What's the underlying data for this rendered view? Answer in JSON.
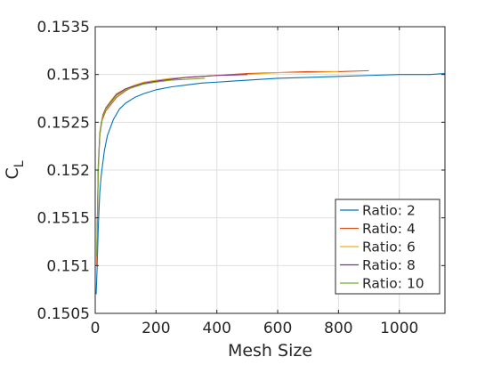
{
  "chart_data": {
    "type": "line",
    "xlabel": "Mesh Size",
    "ylabel_main": "C",
    "ylabel_sub": "L",
    "xlim": [
      0,
      1150
    ],
    "ylim": [
      0.1505,
      0.1535
    ],
    "xticks": [
      0,
      200,
      400,
      600,
      800,
      1000
    ],
    "yticks": [
      0.1505,
      0.151,
      0.1515,
      0.152,
      0.1525,
      0.153,
      0.1535
    ],
    "xtick_labels": [
      "0",
      "200",
      "400",
      "600",
      "800",
      "1000"
    ],
    "ytick_labels": [
      "0.1505",
      "0.151",
      "0.1515",
      "0.152",
      "0.1525",
      "0.153",
      "0.1535"
    ],
    "grid": true,
    "legend_position": "bottom-right",
    "series": [
      {
        "name": "Ratio: 2",
        "color": "#0072BD",
        "x": [
          3,
          6,
          10,
          15,
          20,
          30,
          40,
          60,
          80,
          100,
          130,
          160,
          200,
          250,
          300,
          350,
          400,
          500,
          600,
          700,
          800,
          900,
          1000,
          1100,
          1150
        ],
        "y": [
          0.1507,
          0.15095,
          0.1514,
          0.15177,
          0.15195,
          0.1522,
          0.15236,
          0.15253,
          0.15264,
          0.1527,
          0.15276,
          0.1528,
          0.15284,
          0.15287,
          0.15289,
          0.15291,
          0.15292,
          0.15294,
          0.15296,
          0.15297,
          0.15298,
          0.15299,
          0.153,
          0.153,
          0.15301
        ]
      },
      {
        "name": "Ratio: 4",
        "color": "#D95319",
        "x": [
          5,
          10,
          15,
          20,
          35,
          50,
          70,
          100,
          130,
          160,
          200,
          250,
          300,
          400,
          500,
          600,
          700,
          800,
          900
        ],
        "y": [
          0.151,
          0.152,
          0.15235,
          0.1525,
          0.15262,
          0.15268,
          0.15276,
          0.15283,
          0.15288,
          0.15291,
          0.15293,
          0.15295,
          0.15297,
          0.15299,
          0.15301,
          0.15302,
          0.15303,
          0.15303,
          0.15304
        ]
      },
      {
        "name": "Ratio: 6",
        "color": "#EDB120",
        "x": [
          5,
          10,
          15,
          25,
          35,
          50,
          70,
          100,
          130,
          160,
          200,
          250,
          300,
          400,
          500,
          600,
          700,
          800
        ],
        "y": [
          0.1512,
          0.152,
          0.1524,
          0.15258,
          0.15265,
          0.15272,
          0.1528,
          0.15285,
          0.15289,
          0.15292,
          0.15294,
          0.15296,
          0.15297,
          0.15299,
          0.153,
          0.15302,
          0.15302,
          0.15303
        ]
      },
      {
        "name": "Ratio: 8",
        "color": "#7E2F8E",
        "x": [
          5,
          10,
          15,
          25,
          35,
          50,
          70,
          100,
          130,
          160,
          200,
          250,
          300,
          400,
          500
        ],
        "y": [
          0.1511,
          0.15205,
          0.15238,
          0.15257,
          0.15265,
          0.15271,
          0.15279,
          0.15285,
          0.15288,
          0.15291,
          0.15293,
          0.15295,
          0.15297,
          0.15299,
          0.153
        ]
      },
      {
        "name": "Ratio: 10",
        "color": "#77AC30",
        "x": [
          5,
          10,
          15,
          25,
          35,
          50,
          70,
          100,
          130,
          160,
          200,
          250,
          300,
          360
        ],
        "y": [
          0.1511,
          0.152,
          0.15237,
          0.15256,
          0.15264,
          0.1527,
          0.15278,
          0.15284,
          0.15287,
          0.1529,
          0.15292,
          0.15294,
          0.15295,
          0.15296
        ]
      }
    ]
  }
}
